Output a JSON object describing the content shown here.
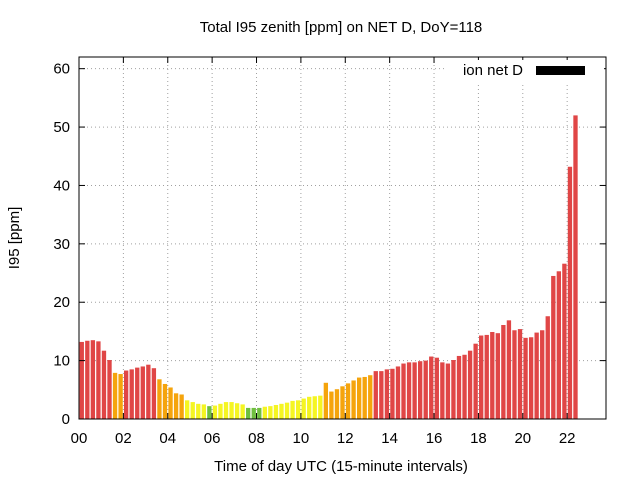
{
  "chart_data": {
    "type": "bar",
    "title": "Total I95 zenith [ppm] on NET D, DoY=118",
    "xlabel": "Time of day UTC (15-minute intervals)",
    "ylabel": "I95 [ppm]",
    "ylim": [
      0,
      62
    ],
    "xlim": [
      0,
      23.75
    ],
    "y_ticks": [
      0,
      10,
      20,
      30,
      40,
      50,
      60
    ],
    "x_ticks": [
      "00",
      "02",
      "04",
      "06",
      "08",
      "10",
      "12",
      "14",
      "16",
      "18",
      "20",
      "22"
    ],
    "x_tick_hours": [
      0,
      2,
      4,
      6,
      8,
      10,
      12,
      14,
      16,
      18,
      20,
      22
    ],
    "grid": true,
    "legend": {
      "label": "ion net D",
      "placement": "top-right",
      "color": "#000000"
    },
    "colors": {
      "red": "#e04646",
      "orange": "#f5a40c",
      "yellow": "#f5f522",
      "green": "#6fbf3f"
    },
    "interval_hours": 0.25,
    "values": [
      13.2,
      13.4,
      13.5,
      13.3,
      11.7,
      10.1,
      7.9,
      7.7,
      8.3,
      8.5,
      8.8,
      9.0,
      9.3,
      8.7,
      6.8,
      6.0,
      5.4,
      4.4,
      4.2,
      3.2,
      2.9,
      2.6,
      2.5,
      2.2,
      2.3,
      2.6,
      2.9,
      2.9,
      2.7,
      2.5,
      1.9,
      1.9,
      1.9,
      2.1,
      2.2,
      2.4,
      2.6,
      2.8,
      3.1,
      3.2,
      3.5,
      3.8,
      3.9,
      4.0,
      6.2,
      4.7,
      5.1,
      5.6,
      6.1,
      6.6,
      7.1,
      7.2,
      7.5,
      8.2,
      8.2,
      8.5,
      8.6,
      9.0,
      9.5,
      9.7,
      9.7,
      9.9,
      10.0,
      10.7,
      10.5,
      9.7,
      9.5,
      10.1,
      10.8,
      11.0,
      11.7,
      12.9,
      14.3,
      14.4,
      14.9,
      14.7,
      16.1,
      16.9,
      15.2,
      15.4,
      13.9,
      14.0,
      14.8,
      15.2,
      17.6,
      24.5,
      25.3,
      26.6,
      43.2,
      52.0
    ],
    "bar_colors": [
      "red",
      "red",
      "red",
      "red",
      "red",
      "red",
      "orange",
      "orange",
      "red",
      "red",
      "red",
      "red",
      "red",
      "red",
      "orange",
      "orange",
      "orange",
      "orange",
      "orange",
      "yellow",
      "yellow",
      "yellow",
      "yellow",
      "green",
      "yellow",
      "yellow",
      "yellow",
      "yellow",
      "yellow",
      "yellow",
      "green",
      "green",
      "green",
      "yellow",
      "yellow",
      "yellow",
      "yellow",
      "yellow",
      "yellow",
      "yellow",
      "yellow",
      "yellow",
      "yellow",
      "yellow",
      "orange",
      "orange",
      "orange",
      "orange",
      "orange",
      "orange",
      "orange",
      "orange",
      "orange",
      "red",
      "red",
      "red",
      "red",
      "red",
      "red",
      "red",
      "red",
      "red",
      "red",
      "red",
      "red",
      "red",
      "red",
      "red",
      "red",
      "red",
      "red",
      "red",
      "red",
      "red",
      "red",
      "red",
      "red",
      "red",
      "red",
      "red",
      "red",
      "red",
      "red",
      "red",
      "red",
      "red",
      "red",
      "red",
      "red",
      "red"
    ]
  }
}
